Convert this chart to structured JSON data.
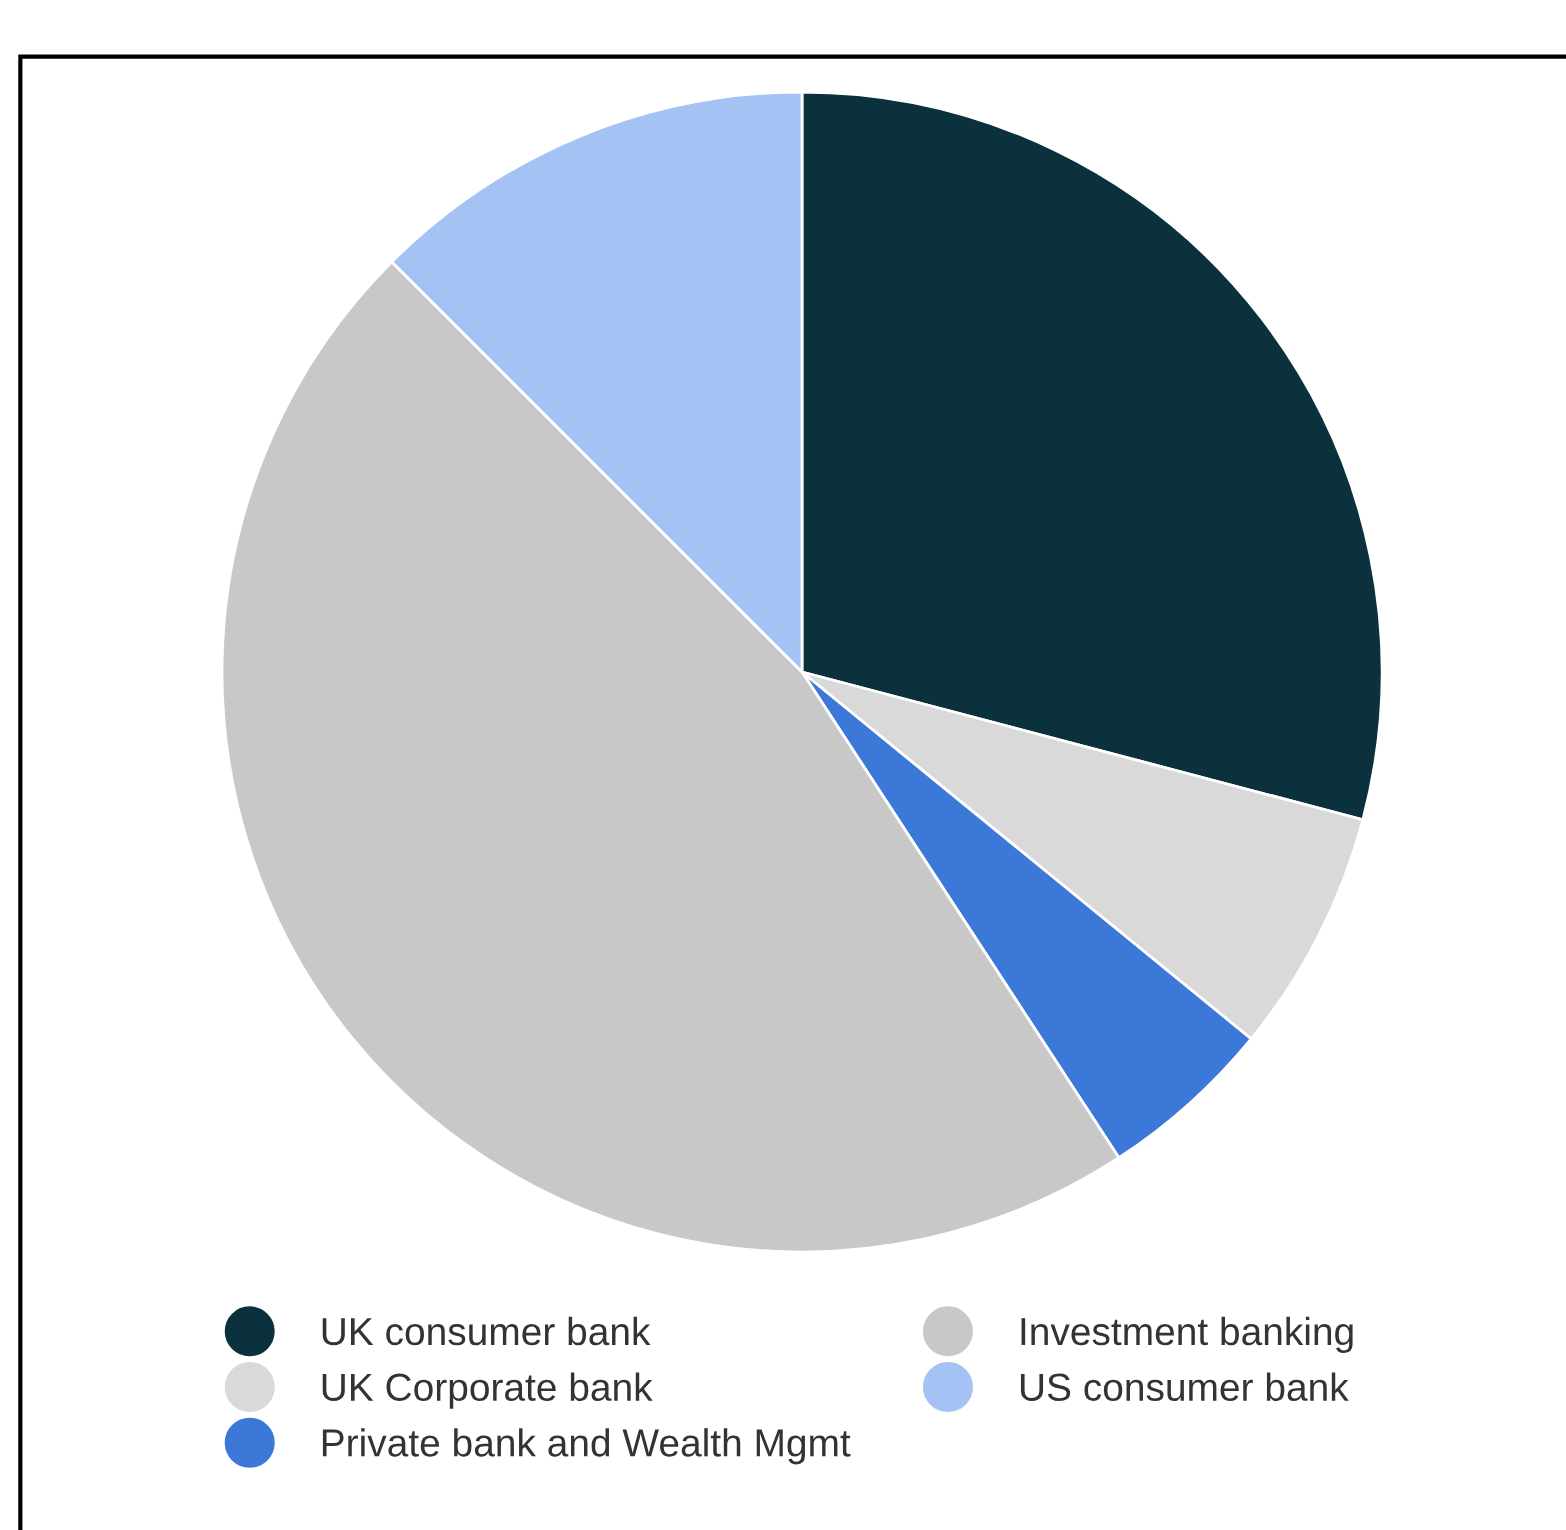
{
  "chart_data": {
    "type": "pie",
    "categories": [
      "UK consumer bank",
      "UK Corporate bank",
      "Private bank and Wealth Mgmt",
      "Investment banking",
      "US consumer bank"
    ],
    "values": [
      29.1,
      6.8,
      4.9,
      46.7,
      12.5
    ],
    "colors": [
      "#0b313d",
      "#d9d9d9",
      "#3c78d8",
      "#c8c8c8",
      "#a4c2f4"
    ],
    "legend": "bottom"
  }
}
